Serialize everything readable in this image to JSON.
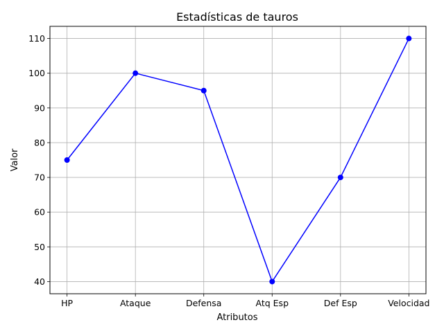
{
  "chart_data": {
    "type": "line",
    "title": "Estadísticas de tauros",
    "xlabel": "Atributos",
    "ylabel": "Valor",
    "categories": [
      "HP",
      "Ataque",
      "Defensa",
      "Atq Esp",
      "Def Esp",
      "Velocidad"
    ],
    "series": [
      {
        "values": [
          75,
          100,
          95,
          40,
          70,
          110
        ],
        "color": "#0000ff",
        "marker": "circle"
      }
    ],
    "ylim": [
      36.5,
      113.5
    ],
    "yticks": [
      40,
      50,
      60,
      70,
      80,
      90,
      100,
      110
    ],
    "grid": true,
    "legend": "none"
  }
}
